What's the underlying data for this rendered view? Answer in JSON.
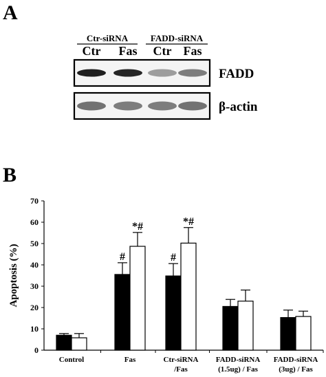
{
  "panel_a": {
    "letter": "A",
    "group_labels": [
      "Ctr-siRNA",
      "FADD-siRNA"
    ],
    "lane_labels": [
      "Ctr",
      "Fas",
      "Ctr",
      "Fas"
    ],
    "bands": [
      {
        "name": "FADD",
        "intensity": [
          0.95,
          0.92,
          0.35,
          0.5
        ]
      },
      {
        "name": "β-actin",
        "intensity": [
          0.55,
          0.5,
          0.5,
          0.55
        ]
      }
    ]
  },
  "panel_b": {
    "letter": "B"
  },
  "chart_data": {
    "type": "bar",
    "title": "",
    "ylabel": "Apoptosis (%)",
    "xlabel": "",
    "ylim": [
      0,
      70
    ],
    "yticks": [
      0,
      10,
      20,
      30,
      40,
      50,
      60,
      70
    ],
    "categories": [
      "Control",
      "Fas",
      "Ctr-siRNA\n/Fas",
      "FADD-siRNA\n(1.5ug) / Fas",
      "FADD-siRNA\n(3ug) / Fas"
    ],
    "series": [
      {
        "fill": "#000000",
        "values": [
          7,
          35.5,
          34.8,
          20.5,
          15.3
        ],
        "errors": [
          0.8,
          5.5,
          5.8,
          3.3,
          3.5
        ]
      },
      {
        "fill": "#ffffff",
        "values": [
          5.8,
          48.7,
          50.2,
          23.0,
          15.8
        ],
        "errors": [
          2.0,
          6.5,
          7.3,
          5.2,
          2.5
        ]
      }
    ],
    "annotations": [
      {
        "category": 1,
        "series": 0,
        "text": "#"
      },
      {
        "category": 1,
        "series": 1,
        "text": "*#"
      },
      {
        "category": 2,
        "series": 0,
        "text": "#"
      },
      {
        "category": 2,
        "series": 1,
        "text": "*#"
      }
    ],
    "grid": false,
    "legend": "none"
  }
}
